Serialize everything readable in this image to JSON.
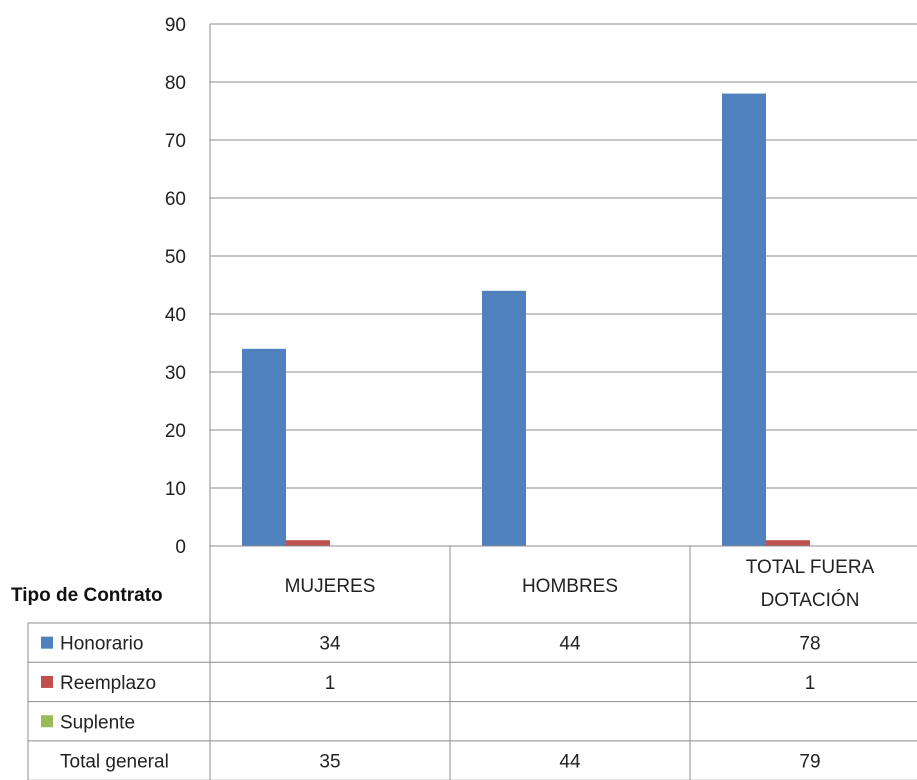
{
  "chart_data": {
    "type": "bar",
    "categories": [
      "MUJERES",
      "HOMBRES",
      "TOTAL FUERA DOTACIÓN"
    ],
    "category_lines": [
      [
        "MUJERES"
      ],
      [
        "HOMBRES"
      ],
      [
        "TOTAL FUERA",
        "DOTACIÓN"
      ]
    ],
    "series": [
      {
        "name": "Honorario",
        "values": [
          34,
          44,
          78
        ],
        "color": "#4f81bd",
        "table_values": [
          "34",
          "44",
          "78"
        ]
      },
      {
        "name": "Reemplazo",
        "values": [
          1,
          0,
          1
        ],
        "color": "#c0504d",
        "table_values": [
          "1",
          "",
          "1"
        ]
      },
      {
        "name": "Suplente",
        "values": [
          0,
          0,
          0
        ],
        "color": "#9bbb59",
        "table_values": [
          "",
          "",
          ""
        ]
      }
    ],
    "total_row": {
      "label": "Total general",
      "values": [
        "35",
        "44",
        "79"
      ]
    },
    "table_title": "Tipo de Contrato",
    "ylim": [
      0,
      90
    ],
    "yticks": [
      0,
      10,
      20,
      30,
      40,
      50,
      60,
      70,
      80,
      90
    ],
    "grid": true
  }
}
